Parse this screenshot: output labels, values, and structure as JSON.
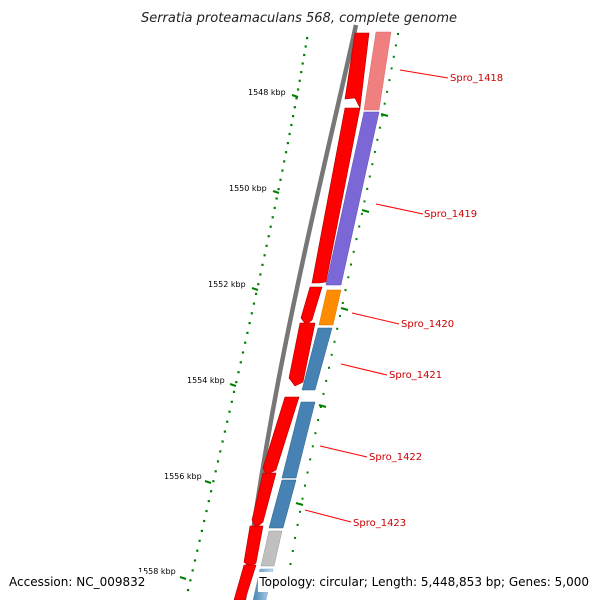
{
  "title": "Serratia proteamaculans 568, complete genome",
  "accession": "Accession: NC_009832",
  "summary": "Topology: circular; Length: 5,448,853 bp; Genes: 5,000",
  "ticks": [
    "1548 kbp",
    "1550 kbp",
    "1552 kbp",
    "1554 kbp",
    "1556 kbp",
    "1558 kbp"
  ],
  "colors": {
    "backbone": "#777777",
    "cds": "#ff0000",
    "tick": "#008000",
    "label": "#cc0000"
  },
  "genes": [
    {
      "label": "Spro_1418",
      "color": "#f08080"
    },
    {
      "label": "Spro_1419",
      "color": "#7b68d6"
    },
    {
      "label": "Spro_1420",
      "color": "#ff8c00"
    },
    {
      "label": "Spro_1421",
      "color": "#4682b4"
    },
    {
      "label": "Spro_1422",
      "color": "#4682b4"
    },
    {
      "label": "Spro_1423",
      "color": "#4682b4"
    }
  ]
}
